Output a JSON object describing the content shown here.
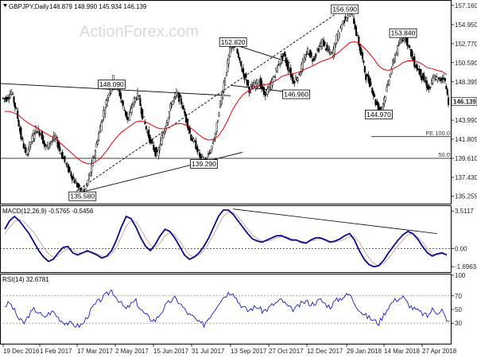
{
  "header": {
    "price_title": "GBPJPY,Daily",
    "ohlc": "148.879 148.990 145.934 146.139",
    "macd_title": "MACD(12,26,9) -0.5765 -0.5456",
    "rsi_title": "RSI(14) 32.6781"
  },
  "watermark": "ActionForex.com",
  "colors": {
    "candle": "#000000",
    "ma": "#e60000",
    "macd": "#0a0a8c",
    "signal": "#d1a6a6",
    "rsi": "#0000cc",
    "level": "#000000"
  },
  "chart_data": [
    {
      "type": "line",
      "name": "price",
      "title": "GBPJPY,Daily",
      "ylim": [
        134.5,
        157.6
      ],
      "y_ticks": [
        "157.160",
        "154.950",
        "152.770",
        "150.590",
        "148.395",
        "146.139",
        "143.990",
        "141.805",
        "139.610",
        "137.430",
        "135.255"
      ],
      "x_ticks": [
        "19 Dec 2016",
        "1 Feb 2017",
        "17 Mar 2017",
        "2 May 2017",
        "15 Jun 2017",
        "31 Jul 2017",
        "13 Sep 2017",
        "27 Oct 2017",
        "12 Dec 2017",
        "29 Jan 2018",
        "14 Mar 2018",
        "27 Apr 2018"
      ],
      "close_series": [
        146.5,
        147.2,
        145.0,
        142.0,
        140.0,
        141.5,
        143.0,
        142.5,
        140.8,
        141.5,
        142.0,
        140.5,
        139.2,
        138.0,
        137.0,
        136.0,
        135.6,
        137.5,
        140.0,
        142.5,
        145.0,
        147.0,
        148.8,
        147.5,
        145.5,
        144.0,
        146.0,
        147.0,
        144.5,
        142.5,
        141.0,
        140.0,
        142.0,
        144.0,
        146.0,
        147.0,
        146.0,
        144.0,
        142.0,
        141.0,
        139.5,
        139.3,
        140.5,
        142.5,
        146.0,
        149.0,
        152.0,
        152.8,
        150.5,
        149.0,
        147.5,
        148.0,
        148.5,
        147.0,
        147.5,
        149.0,
        150.5,
        151.5,
        150.0,
        148.5,
        149.0,
        150.5,
        152.0,
        151.0,
        152.0,
        153.0,
        152.0,
        151.5,
        153.5,
        155.0,
        156.0,
        156.6,
        154.0,
        151.5,
        149.0,
        148.0,
        146.0,
        145.0,
        147.0,
        149.5,
        151.5,
        153.0,
        153.8,
        152.0,
        150.5,
        149.5,
        148.5,
        147.5,
        149.0,
        148.5,
        149.0,
        146.1
      ],
      "ma_series": [
        145.0,
        145.0,
        144.8,
        144.5,
        144.0,
        143.6,
        143.3,
        143.0,
        142.6,
        142.3,
        142.0,
        141.6,
        141.1,
        140.6,
        140.1,
        139.6,
        139.2,
        139.0,
        139.0,
        139.3,
        139.8,
        140.5,
        141.3,
        142.0,
        142.6,
        143.0,
        143.4,
        143.8,
        143.9,
        143.8,
        143.5,
        143.2,
        143.0,
        143.0,
        143.2,
        143.5,
        143.6,
        143.5,
        143.2,
        142.8,
        142.3,
        141.9,
        141.7,
        141.8,
        142.2,
        143.0,
        144.1,
        145.3,
        146.2,
        146.9,
        147.3,
        147.6,
        147.9,
        148.0,
        148.1,
        148.3,
        148.6,
        149.0,
        149.2,
        149.3,
        149.4,
        149.6,
        149.9,
        150.1,
        150.4,
        150.7,
        150.9,
        151.1,
        151.5,
        151.9,
        152.4,
        152.9,
        153.0,
        152.8,
        152.3,
        151.7,
        151.0,
        150.2,
        149.8,
        149.7,
        149.9,
        150.2,
        150.6,
        150.8,
        150.8,
        150.7,
        150.4,
        150.0,
        149.9,
        149.7,
        149.6,
        149.2
      ],
      "annotations": [
        {
          "text": "156.590",
          "x": 70,
          "y": 156.59
        },
        {
          "text": "153.840",
          "x": 82,
          "y": 153.84
        },
        {
          "text": "152.820",
          "x": 47,
          "y": 152.82
        },
        {
          "text": "148.090",
          "x": 22,
          "y": 148.09
        },
        {
          "text": "146.960",
          "x": 60,
          "y": 146.96
        },
        {
          "text": "144.970",
          "x": 77,
          "y": 144.97
        },
        {
          "text": "139.290",
          "x": 41,
          "y": 139.29
        },
        {
          "text": "135.580",
          "x": 16,
          "y": 135.58
        }
      ],
      "levels": [
        {
          "label": "FE 100.0",
          "y": 142.1
        },
        {
          "label": "50.0",
          "y": 139.61
        }
      ]
    },
    {
      "type": "line",
      "name": "macd",
      "title": "MACD(12,26,9) -0.5765 -0.5456",
      "ylim": [
        -2.2,
        3.9
      ],
      "y_ticks": [
        "3.5117",
        "0.00",
        "-1.6963"
      ],
      "macd_series": [
        1.8,
        2.6,
        3.0,
        2.6,
        2.0,
        1.4,
        0.6,
        -0.2,
        -0.8,
        -1.2,
        -1.0,
        -0.4,
        0.1,
        0.2,
        -0.4,
        -0.6,
        -0.4,
        -0.2,
        -0.4,
        -0.6,
        -0.9,
        -0.7,
        -0.2,
        0.8,
        2.0,
        3.0,
        2.8,
        2.0,
        1.0,
        0.2,
        -0.2,
        0.4,
        1.2,
        1.8,
        1.6,
        1.0,
        0.2,
        -0.6,
        -1.0,
        -0.8,
        -0.4,
        0.2,
        1.0,
        2.0,
        3.0,
        3.6,
        3.6,
        3.2,
        2.6,
        2.0,
        1.4,
        0.9,
        0.7,
        0.6,
        0.8,
        1.0,
        1.2,
        1.2,
        1.0,
        0.8,
        0.8,
        0.6,
        0.5,
        0.8,
        1.0,
        1.0,
        0.8,
        0.6,
        0.7,
        0.9,
        1.2,
        1.4,
        0.8,
        -0.2,
        -1.0,
        -1.5,
        -1.7,
        -1.6,
        -1.1,
        -0.4,
        0.2,
        0.8,
        1.3,
        1.6,
        1.4,
        0.9,
        0.2,
        -0.4,
        -0.7,
        -0.5,
        -0.4,
        -0.6
      ],
      "signal_series": [
        1.4,
        2.0,
        2.5,
        2.7,
        2.5,
        2.0,
        1.5,
        0.8,
        0.1,
        -0.5,
        -0.8,
        -0.7,
        -0.3,
        0.0,
        -0.1,
        -0.4,
        -0.4,
        -0.3,
        -0.3,
        -0.5,
        -0.7,
        -0.8,
        -0.5,
        0.1,
        1.1,
        2.1,
        2.6,
        2.5,
        1.8,
        1.0,
        0.3,
        0.1,
        0.5,
        1.2,
        1.5,
        1.3,
        0.7,
        0.0,
        -0.6,
        -0.8,
        -0.6,
        -0.2,
        0.5,
        1.3,
        2.2,
        3.0,
        3.4,
        3.4,
        3.0,
        2.4,
        1.8,
        1.3,
        0.9,
        0.7,
        0.7,
        0.8,
        1.0,
        1.1,
        1.1,
        0.9,
        0.8,
        0.7,
        0.6,
        0.7,
        0.8,
        0.9,
        0.9,
        0.7,
        0.6,
        0.7,
        0.9,
        1.1,
        1.1,
        0.6,
        -0.2,
        -0.9,
        -1.4,
        -1.6,
        -1.4,
        -0.9,
        -0.3,
        0.3,
        0.8,
        1.3,
        1.4,
        1.1,
        0.6,
        0.0,
        -0.5,
        -0.6,
        -0.5,
        -0.55
      ]
    },
    {
      "type": "line",
      "name": "rsi",
      "title": "RSI(14) 32.6781",
      "ylim": [
        0,
        100
      ],
      "y_ticks": [
        "100",
        "70",
        "50",
        "30",
        "0"
      ],
      "rsi_series": [
        55,
        60,
        48,
        35,
        30,
        42,
        50,
        46,
        38,
        44,
        47,
        38,
        32,
        30,
        28,
        26,
        28,
        40,
        52,
        60,
        66,
        72,
        78,
        68,
        58,
        50,
        58,
        62,
        50,
        42,
        36,
        34,
        44,
        54,
        62,
        66,
        60,
        50,
        42,
        38,
        30,
        28,
        38,
        48,
        60,
        68,
        74,
        76,
        62,
        54,
        48,
        52,
        54,
        48,
        50,
        56,
        60,
        64,
        56,
        50,
        52,
        58,
        62,
        58,
        60,
        64,
        58,
        54,
        62,
        66,
        70,
        72,
        60,
        50,
        42,
        38,
        34,
        30,
        42,
        54,
        62,
        66,
        68,
        58,
        52,
        48,
        44,
        40,
        50,
        46,
        50,
        32.7
      ]
    }
  ]
}
